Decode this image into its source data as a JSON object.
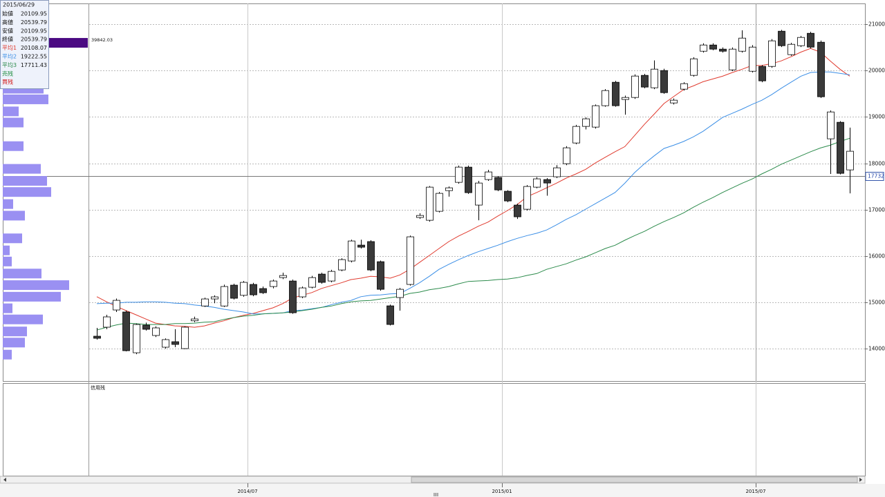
{
  "chart_data": [
    {
      "type": "candlestick",
      "open": [
        14268,
        14462,
        14834,
        14790,
        13910,
        14506,
        14283,
        14030,
        14149,
        14000,
        14600,
        14920,
        15072,
        14920,
        15370,
        15150,
        15385,
        15296,
        15340,
        15533,
        15459,
        15117,
        15325,
        15608,
        15459,
        15697,
        15891,
        16234,
        16310,
        15876,
        14923,
        15102,
        15385,
        16830,
        16770,
        16964,
        17410,
        17589,
        17917,
        17098,
        17649,
        17694,
        17396,
        17098,
        17008,
        17485,
        17649,
        17709,
        17991,
        18438,
        18796,
        18781,
        19243,
        19749,
        19377,
        19421,
        19898,
        19630,
        20002,
        19302,
        19600,
        19898,
        20419,
        20553,
        20464,
        20017,
        20419,
        19987,
        20091,
        20091,
        20851,
        20345,
        20538,
        20806,
        20613,
        18528,
        18885,
        17857
      ],
      "high": [
        14447,
        14730,
        15080,
        14820,
        14540,
        14560,
        14480,
        14220,
        14420,
        14480,
        14690,
        15100,
        15150,
        15380,
        15400,
        15460,
        15420,
        15340,
        15490,
        15640,
        15490,
        15340,
        15570,
        15640,
        15700,
        15950,
        16350,
        16350,
        16340,
        15900,
        14950,
        15310,
        16440,
        16920,
        17510,
        17380,
        17500,
        17950,
        17950,
        17620,
        17860,
        17720,
        17420,
        17130,
        17530,
        17700,
        17680,
        17960,
        18370,
        18830,
        18990,
        19270,
        19600,
        19780,
        19460,
        19920,
        19930,
        20220,
        20040,
        19400,
        19750,
        20290,
        20590,
        20590,
        20500,
        20500,
        20870,
        20550,
        20120,
        20680,
        20880,
        20600,
        20750,
        20840,
        20650,
        19140,
        18910,
        18770
      ],
      "low": [
        14194,
        14420,
        14790,
        13940,
        13880,
        14390,
        14250,
        14000,
        14030,
        13990,
        14570,
        14900,
        14980,
        14900,
        15060,
        15120,
        15130,
        15180,
        15300,
        15500,
        14750,
        15090,
        15300,
        15400,
        15430,
        15670,
        15860,
        16160,
        15670,
        15250,
        14500,
        14820,
        15360,
        16800,
        16740,
        16940,
        17280,
        17560,
        17340,
        16770,
        17620,
        17400,
        17160,
        16800,
        16980,
        17460,
        17300,
        17680,
        17960,
        18410,
        18730,
        18750,
        19220,
        19220,
        19050,
        19390,
        19620,
        19600,
        19500,
        19270,
        19570,
        19870,
        20390,
        20440,
        20390,
        19990,
        20390,
        19960,
        19750,
        20060,
        20510,
        20320,
        20510,
        20480,
        19410,
        17770,
        17760,
        17350
      ],
      "close": [
        14223,
        14685,
        15042,
        13955,
        14520,
        14417,
        14447,
        14194,
        14090,
        14462,
        14640,
        15072,
        15117,
        15340,
        15087,
        15430,
        15161,
        15206,
        15459,
        15578,
        14774,
        15310,
        15533,
        15430,
        15667,
        15921,
        16323,
        16189,
        15697,
        15280,
        14521,
        15280,
        16413,
        16874,
        17485,
        17351,
        17470,
        17917,
        17366,
        17574,
        17813,
        17425,
        17187,
        16845,
        17500,
        17664,
        17574,
        17902,
        18334,
        18796,
        18960,
        19243,
        19570,
        19243,
        19421,
        19883,
        19645,
        20032,
        19525,
        19362,
        19719,
        20255,
        20553,
        20464,
        20419,
        20464,
        20702,
        20508,
        19779,
        20643,
        20538,
        20568,
        20717,
        20508,
        19436,
        19108,
        17783,
        18260
      ],
      "up_color": "#ffffff",
      "down_color": "#3a3a3a",
      "series": [
        {
          "name": "平均1",
          "color": "#e03a2e",
          "values": [
            15120,
            15010,
            14910,
            14820,
            14730,
            14640,
            14550,
            14520,
            14490,
            14480,
            14460,
            14490,
            14550,
            14600,
            14670,
            14720,
            14760,
            14820,
            14880,
            14970,
            15090,
            15150,
            15210,
            15300,
            15360,
            15420,
            15490,
            15520,
            15560,
            15550,
            15520,
            15590,
            15710,
            15860,
            16010,
            16160,
            16310,
            16430,
            16530,
            16640,
            16730,
            16860,
            16980,
            17110,
            17280,
            17370,
            17470,
            17570,
            17680,
            17770,
            17870,
            18010,
            18130,
            18250,
            18360,
            18600,
            18840,
            19060,
            19290,
            19440,
            19590,
            19670,
            19760,
            19820,
            19880,
            19960,
            20030,
            20110,
            20110,
            20150,
            20210,
            20300,
            20400,
            20480,
            20400,
            20210,
            20030,
            19880
          ]
        },
        {
          "name": "平均2",
          "color": "#3a8ee6",
          "values": [
            14970,
            14980,
            14980,
            15000,
            15000,
            15010,
            15010,
            15000,
            14980,
            14970,
            14940,
            14920,
            14890,
            14850,
            14820,
            14790,
            14750,
            14750,
            14760,
            14770,
            14820,
            14830,
            14860,
            14890,
            14950,
            15000,
            15040,
            15120,
            15150,
            15160,
            15180,
            15190,
            15300,
            15420,
            15560,
            15710,
            15820,
            15920,
            16010,
            16090,
            16160,
            16230,
            16310,
            16380,
            16440,
            16490,
            16560,
            16670,
            16790,
            16890,
            17010,
            17130,
            17250,
            17370,
            17570,
            17800,
            17990,
            18160,
            18320,
            18390,
            18470,
            18570,
            18690,
            18840,
            18990,
            19080,
            19170,
            19270,
            19360,
            19480,
            19620,
            19750,
            19880,
            19960,
            19970,
            19970,
            19940,
            19910
          ]
        },
        {
          "name": "平均3",
          "color": "#2a8a4a",
          "values": [
            14400,
            14460,
            14510,
            14550,
            14540,
            14520,
            14520,
            14520,
            14540,
            14540,
            14550,
            14570,
            14580,
            14630,
            14670,
            14700,
            14720,
            14750,
            14760,
            14770,
            14790,
            14820,
            14850,
            14890,
            14920,
            14970,
            15010,
            15030,
            15040,
            15070,
            15100,
            15130,
            15190,
            15220,
            15270,
            15300,
            15340,
            15400,
            15450,
            15460,
            15470,
            15490,
            15500,
            15530,
            15580,
            15620,
            15710,
            15770,
            15830,
            15910,
            15980,
            16070,
            16160,
            16230,
            16340,
            16440,
            16530,
            16640,
            16740,
            16830,
            16930,
            17050,
            17160,
            17260,
            17370,
            17470,
            17570,
            17660,
            17770,
            17870,
            17980,
            18070,
            18160,
            18250,
            18330,
            18390,
            18470,
            18540
          ]
        }
      ],
      "ylim": [
        13300,
        21450
      ],
      "yticks": [
        14000,
        15000,
        16000,
        17000,
        18000,
        19000,
        20000,
        21000
      ],
      "grid": true,
      "cursor_price": 17732,
      "x_labels": [
        "2014/07",
        "2015/01",
        "2015/07"
      ]
    },
    {
      "type": "volume_profile",
      "price": [
        20600,
        19610,
        19380,
        19120,
        18880,
        18370,
        17880,
        17620,
        17380,
        17120,
        16870,
        16380,
        16120,
        15880,
        15620,
        15370,
        15120,
        14870,
        14630,
        14370,
        14130,
        13870
      ],
      "values": [
        39842.03,
        19120,
        21380,
        7450,
        9720,
        9720,
        17820,
        20740,
        22680,
        4860,
        10370,
        9070,
        3240,
        4210,
        18140,
        31100,
        27210,
        4540,
        18790,
        11340,
        10370,
        4210
      ],
      "color": "#9a90f2",
      "highlight_color": "#4b0a82",
      "highlight_index": 0
    }
  ],
  "info_panel": {
    "date": "2015/06/29",
    "rows": [
      {
        "label": "始値",
        "value": 20109.95
      },
      {
        "label": "高値",
        "value": 20539.79
      },
      {
        "label": "安値",
        "value": 20109.95
      },
      {
        "label": "終値",
        "value": 20539.79
      }
    ],
    "averages": [
      20108.07,
      19222.55,
      17711.43
    ],
    "extra": [
      {
        "label": "売残",
        "color": "#1a8a3a"
      },
      {
        "label": "買残",
        "color": "#d01010"
      }
    ]
  },
  "sub_panel": {
    "title": "信用残"
  }
}
